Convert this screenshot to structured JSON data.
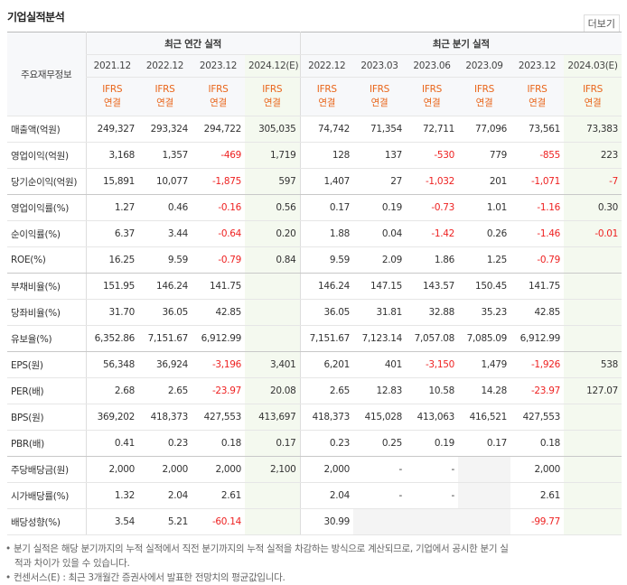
{
  "header": {
    "title": "기업실적분석",
    "more": "더보기"
  },
  "table": {
    "row_header": "주요재무정보",
    "groups": [
      {
        "label": "최근 연간 실적",
        "periods": [
          {
            "period": "2021.12",
            "standard": "IFRS",
            "basis": "연결"
          },
          {
            "period": "2022.12",
            "standard": "IFRS",
            "basis": "연결"
          },
          {
            "period": "2023.12",
            "standard": "IFRS",
            "basis": "연결"
          },
          {
            "period": "2024.12(E)",
            "standard": "IFRS",
            "basis": "연결"
          }
        ]
      },
      {
        "label": "최근 분기 실적",
        "periods": [
          {
            "period": "2022.12",
            "standard": "IFRS",
            "basis": "연결"
          },
          {
            "period": "2023.03",
            "standard": "IFRS",
            "basis": "연결"
          },
          {
            "period": "2023.06",
            "standard": "IFRS",
            "basis": "연결"
          },
          {
            "period": "2023.09",
            "standard": "IFRS",
            "basis": "연결"
          },
          {
            "period": "2023.12",
            "standard": "IFRS",
            "basis": "연결"
          },
          {
            "period": "2024.03(E)",
            "standard": "IFRS",
            "basis": "연결"
          }
        ]
      }
    ],
    "rows": [
      {
        "label": "매출액(억원)",
        "values": [
          [
            "249,327",
            "293,324",
            "294,722",
            "305,035"
          ],
          [
            "74,742",
            "71,354",
            "72,711",
            "77,096",
            "73,561",
            "73,383"
          ]
        ]
      },
      {
        "label": "영업이익(억원)",
        "values": [
          [
            "3,168",
            "1,357",
            "-469",
            "1,719"
          ],
          [
            "128",
            "137",
            "-530",
            "779",
            "-855",
            "223"
          ]
        ]
      },
      {
        "label": "당기순이익(억원)",
        "values": [
          [
            "15,891",
            "10,077",
            "-1,875",
            "597"
          ],
          [
            "1,407",
            "27",
            "-1,032",
            "201",
            "-1,071",
            "-7"
          ]
        ]
      },
      {
        "label": "영업이익률(%)",
        "values": [
          [
            "1.27",
            "0.46",
            "-0.16",
            "0.56"
          ],
          [
            "0.17",
            "0.19",
            "-0.73",
            "1.01",
            "-1.16",
            "0.30"
          ]
        ]
      },
      {
        "label": "순이익률(%)",
        "values": [
          [
            "6.37",
            "3.44",
            "-0.64",
            "0.20"
          ],
          [
            "1.88",
            "0.04",
            "-1.42",
            "0.26",
            "-1.46",
            "-0.01"
          ]
        ]
      },
      {
        "label": "ROE(%)",
        "values": [
          [
            "16.25",
            "9.59",
            "-0.79",
            "0.84"
          ],
          [
            "9.59",
            "2.09",
            "1.86",
            "1.25",
            "-0.79",
            null
          ]
        ]
      },
      {
        "label": "부채비율(%)",
        "values": [
          [
            "151.95",
            "146.24",
            "141.75",
            null
          ],
          [
            "146.24",
            "147.15",
            "143.57",
            "150.45",
            "141.75",
            null
          ]
        ]
      },
      {
        "label": "당좌비율(%)",
        "values": [
          [
            "31.70",
            "36.05",
            "42.85",
            null
          ],
          [
            "36.05",
            "31.81",
            "32.88",
            "35.23",
            "42.85",
            null
          ]
        ]
      },
      {
        "label": "유보율(%)",
        "values": [
          [
            "6,352.86",
            "7,151.67",
            "6,912.99",
            null
          ],
          [
            "7,151.67",
            "7,123.14",
            "7,057.08",
            "7,085.09",
            "6,912.99",
            null
          ]
        ]
      },
      {
        "label": "EPS(원)",
        "values": [
          [
            "56,348",
            "36,924",
            "-3,196",
            "3,401"
          ],
          [
            "6,201",
            "401",
            "-3,150",
            "1,479",
            "-1,926",
            "538"
          ]
        ]
      },
      {
        "label": "PER(배)",
        "values": [
          [
            "2.68",
            "2.65",
            "-23.97",
            "20.08"
          ],
          [
            "2.65",
            "12.83",
            "10.58",
            "14.28",
            "-23.97",
            "127.07"
          ]
        ]
      },
      {
        "label": "BPS(원)",
        "values": [
          [
            "369,202",
            "418,373",
            "427,553",
            "413,697"
          ],
          [
            "418,373",
            "415,028",
            "413,063",
            "416,521",
            "427,553",
            null
          ]
        ]
      },
      {
        "label": "PBR(배)",
        "values": [
          [
            "0.41",
            "0.23",
            "0.18",
            "0.17"
          ],
          [
            "0.23",
            "0.25",
            "0.19",
            "0.17",
            "0.18",
            null
          ]
        ]
      },
      {
        "label": "주당배당금(원)",
        "values": [
          [
            "2,000",
            "2,000",
            "2,000",
            "2,100"
          ],
          [
            "2,000",
            "-",
            "-",
            null,
            "2,000",
            null
          ]
        ]
      },
      {
        "label": "시가배당률(%)",
        "values": [
          [
            "1.32",
            "2.04",
            "2.61",
            null
          ],
          [
            "2.04",
            "-",
            "-",
            null,
            "2.61",
            null
          ]
        ]
      },
      {
        "label": "배당성향(%)",
        "values": [
          [
            "3.54",
            "5.21",
            "-60.14",
            null
          ],
          [
            "30.99",
            null,
            null,
            null,
            "-99.77",
            null
          ]
        ]
      }
    ]
  },
  "footnotes": [
    "분기 실적은 해당 분기까지의 누적 실적에서 직전 분기까지의 누적 실적을 차감하는 방식으로 계산되므로, 기업에서 공시한 분기 실적과 차이가 있을 수 있습니다.",
    "컨센서스(E) : 최근 3개월간 증권사에서 발표한 전망치의 평균값입니다."
  ]
}
